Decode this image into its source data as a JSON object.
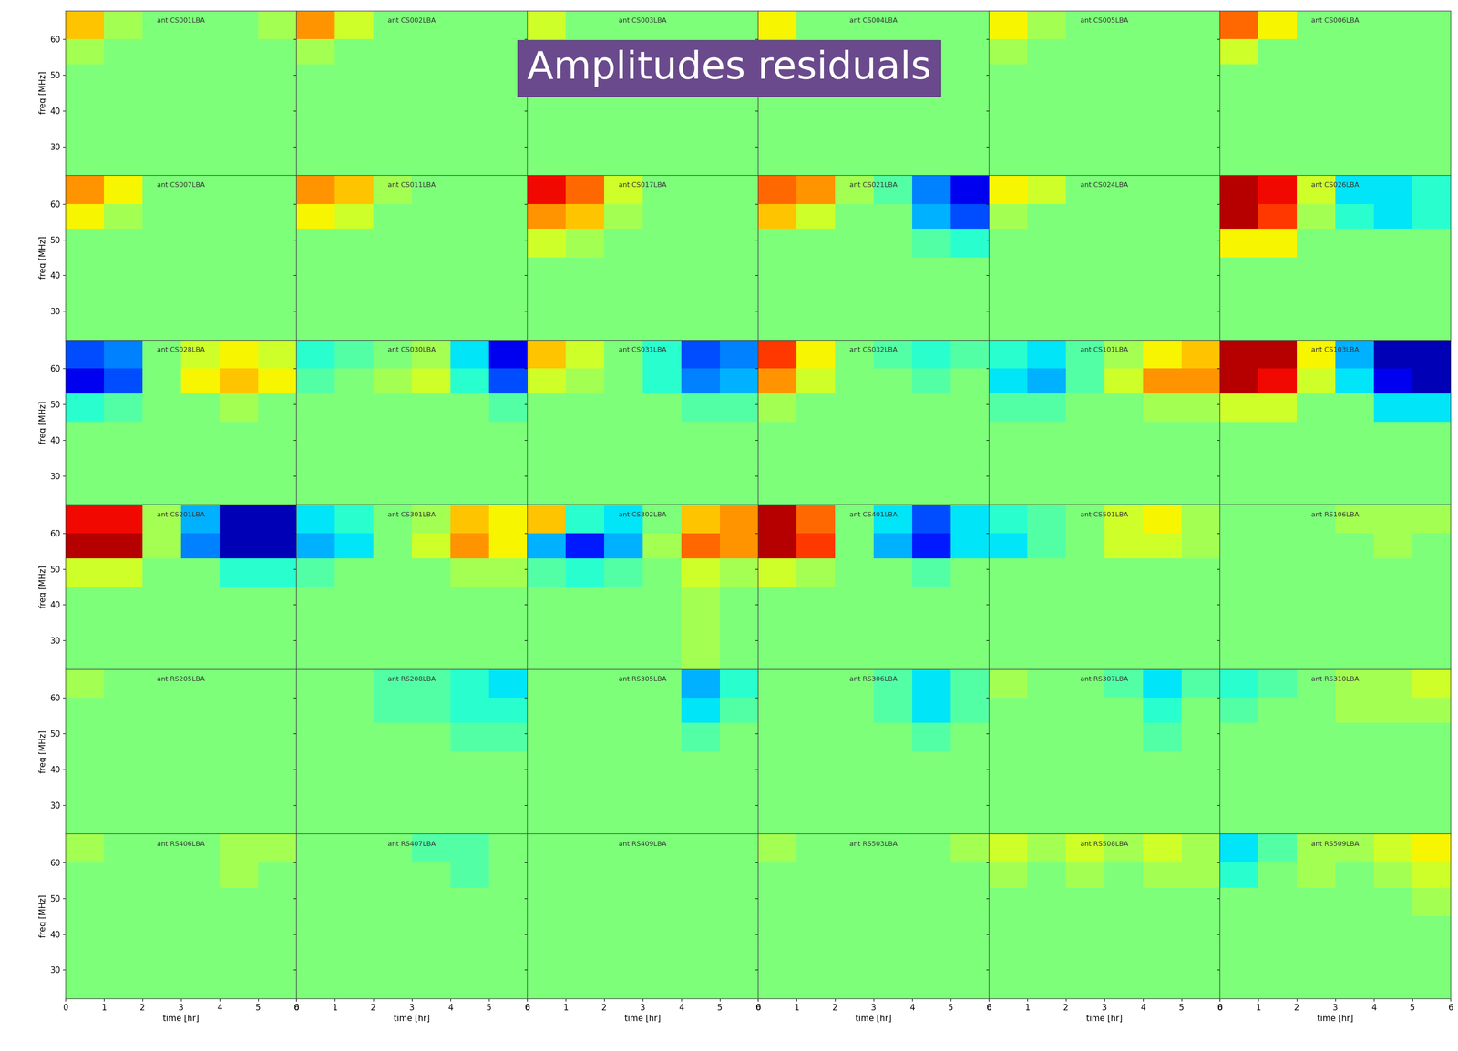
{
  "title": "Amplitudes residuals",
  "chart_data": [
    {
      "type": "heatmap",
      "title": "ant CS001LBA",
      "tick_labels": "y",
      "y_label": "freq [MHz]",
      "cells": [
        [
          0,
          0,
          0,
          0,
          0,
          0
        ],
        [
          0,
          0,
          0,
          0,
          0,
          0
        ],
        [
          0.1,
          0,
          0,
          0,
          0,
          0
        ],
        [
          0.4,
          0.1,
          0,
          0,
          0,
          0.1
        ]
      ]
    },
    {
      "type": "heatmap",
      "title": "ant CS002LBA",
      "tick_labels": false,
      "cells": [
        [
          0,
          0,
          0,
          0,
          0,
          0
        ],
        [
          0,
          0,
          0,
          0,
          0,
          0
        ],
        [
          0.1,
          0,
          0,
          0,
          0,
          0
        ],
        [
          0.5,
          0.2,
          0,
          0,
          0,
          0
        ]
      ]
    },
    {
      "type": "heatmap",
      "title": "ant CS003LBA",
      "tick_labels": false,
      "cells": [
        [
          0,
          0,
          0,
          0,
          0,
          0
        ],
        [
          0,
          0,
          0,
          0,
          0,
          0
        ],
        [
          0,
          0,
          0,
          0,
          0,
          0
        ],
        [
          0.2,
          0,
          0,
          0,
          0,
          0
        ]
      ]
    },
    {
      "type": "heatmap",
      "title": "ant CS004LBA",
      "tick_labels": false,
      "cells": [
        [
          0,
          0,
          0,
          0,
          0,
          0
        ],
        [
          0,
          0,
          0,
          0,
          0,
          0
        ],
        [
          0,
          0,
          0,
          0,
          0,
          0
        ],
        [
          0.3,
          0,
          0,
          0,
          0,
          0
        ]
      ]
    },
    {
      "type": "heatmap",
      "title": "ant CS005LBA",
      "tick_labels": false,
      "cells": [
        [
          0,
          0,
          0,
          0,
          0,
          0
        ],
        [
          0,
          0,
          0,
          0,
          0,
          0
        ],
        [
          0.1,
          0,
          0,
          0,
          0,
          0
        ],
        [
          0.3,
          0.1,
          0,
          0,
          0,
          0
        ]
      ]
    },
    {
      "type": "heatmap",
      "title": "ant CS006LBA",
      "tick_labels": false,
      "cells": [
        [
          0,
          0,
          0,
          0,
          0,
          0
        ],
        [
          0,
          0,
          0,
          0,
          0,
          0
        ],
        [
          0.2,
          0,
          0,
          0,
          0,
          0
        ],
        [
          0.6,
          0.3,
          0,
          0,
          0,
          0
        ]
      ]
    },
    {
      "type": "heatmap",
      "title": "ant CS007LBA",
      "tick_labels": "y",
      "y_label": "freq [MHz]",
      "cells": [
        [
          0,
          0,
          0,
          0,
          0,
          0
        ],
        [
          0,
          0,
          0,
          0,
          0,
          0
        ],
        [
          0.3,
          0.1,
          0,
          0,
          0,
          0
        ],
        [
          0.5,
          0.3,
          0,
          0,
          0,
          0
        ]
      ]
    },
    {
      "type": "heatmap",
      "title": "ant CS011LBA",
      "tick_labels": false,
      "cells": [
        [
          0,
          0,
          0,
          0,
          0,
          0
        ],
        [
          0,
          0,
          0,
          0,
          0,
          0
        ],
        [
          0.3,
          0.2,
          0,
          0,
          0,
          0
        ],
        [
          0.5,
          0.4,
          0.1,
          0,
          0,
          0
        ]
      ]
    },
    {
      "type": "heatmap",
      "title": "ant CS017LBA",
      "tick_labels": false,
      "cells": [
        [
          0,
          0,
          0,
          0,
          0,
          0
        ],
        [
          0.2,
          0.1,
          0,
          0,
          0,
          0
        ],
        [
          0.5,
          0.4,
          0.1,
          0,
          0,
          0
        ],
        [
          0.8,
          0.6,
          0.2,
          0,
          0,
          0
        ]
      ]
    },
    {
      "type": "heatmap",
      "title": "ant CS021LBA",
      "tick_labels": false,
      "cells": [
        [
          0,
          0,
          0,
          0,
          0,
          0
        ],
        [
          0,
          0,
          0,
          0,
          -0.1,
          -0.2
        ],
        [
          0.4,
          0.2,
          0,
          0,
          -0.4,
          -0.6
        ],
        [
          0.6,
          0.5,
          0.1,
          -0.1,
          -0.5,
          -0.8
        ]
      ]
    },
    {
      "type": "heatmap",
      "title": "ant CS024LBA",
      "tick_labels": false,
      "cells": [
        [
          0,
          0,
          0,
          0,
          0,
          0
        ],
        [
          0,
          0,
          0,
          0,
          0,
          0
        ],
        [
          0.1,
          0,
          0,
          0,
          0,
          0
        ],
        [
          0.3,
          0.2,
          0,
          0,
          0,
          0
        ]
      ]
    },
    {
      "type": "heatmap",
      "title": "ant CS026LBA",
      "tick_labels": false,
      "cells": [
        [
          0,
          0,
          0,
          0,
          0,
          0
        ],
        [
          0.3,
          0.3,
          0,
          0,
          0,
          0
        ],
        [
          0.9,
          0.7,
          0.1,
          -0.2,
          -0.3,
          -0.2
        ],
        [
          0.9,
          0.8,
          0.2,
          -0.3,
          -0.3,
          -0.2
        ]
      ]
    },
    {
      "type": "heatmap",
      "title": "ant CS028LBA",
      "tick_labels": "y",
      "y_label": "freq [MHz]",
      "cells": [
        [
          0,
          0,
          0,
          0,
          0,
          0
        ],
        [
          -0.2,
          -0.1,
          0,
          0,
          0.1,
          0
        ],
        [
          -0.8,
          -0.6,
          0,
          0.3,
          0.4,
          0.3
        ],
        [
          -0.6,
          -0.5,
          0,
          0.2,
          0.3,
          0.2
        ]
      ]
    },
    {
      "type": "heatmap",
      "title": "ant CS030LBA",
      "tick_labels": false,
      "cells": [
        [
          0,
          0,
          0,
          0,
          0,
          0
        ],
        [
          0,
          0,
          0,
          0,
          0,
          -0.1
        ],
        [
          -0.1,
          0,
          0.1,
          0.2,
          -0.2,
          -0.6
        ],
        [
          -0.2,
          -0.1,
          0,
          0.1,
          -0.3,
          -0.8
        ]
      ]
    },
    {
      "type": "heatmap",
      "title": "ant CS031LBA",
      "tick_labels": false,
      "cells": [
        [
          0,
          0,
          0,
          0,
          0,
          0
        ],
        [
          0,
          0,
          0,
          0,
          -0.1,
          -0.1
        ],
        [
          0.2,
          0.1,
          0,
          -0.2,
          -0.5,
          -0.4
        ],
        [
          0.4,
          0.2,
          0,
          -0.2,
          -0.6,
          -0.5
        ]
      ]
    },
    {
      "type": "heatmap",
      "title": "ant CS032LBA",
      "tick_labels": false,
      "cells": [
        [
          0,
          0,
          0,
          0,
          0,
          0
        ],
        [
          0.1,
          0,
          0,
          0,
          0,
          0
        ],
        [
          0.5,
          0.2,
          0,
          0,
          -0.1,
          0
        ],
        [
          0.7,
          0.3,
          0,
          -0.1,
          -0.2,
          -0.1
        ]
      ]
    },
    {
      "type": "heatmap",
      "title": "ant CS101LBA",
      "tick_labels": false,
      "cells": [
        [
          0,
          0,
          0,
          0,
          0,
          0
        ],
        [
          -0.1,
          -0.1,
          0,
          0,
          0.1,
          0.1
        ],
        [
          -0.3,
          -0.4,
          -0.1,
          0.2,
          0.5,
          0.5
        ],
        [
          -0.2,
          -0.3,
          -0.1,
          0.1,
          0.3,
          0.4
        ]
      ]
    },
    {
      "type": "heatmap",
      "title": "ant CS103LBA",
      "tick_labels": false,
      "cells": [
        [
          0,
          0,
          0,
          0,
          0,
          0
        ],
        [
          0.2,
          0.2,
          0,
          0,
          -0.3,
          -0.3
        ],
        [
          0.9,
          0.8,
          0.2,
          -0.3,
          -0.8,
          -0.9
        ],
        [
          0.9,
          0.9,
          0.3,
          -0.4,
          -0.9,
          -0.9
        ]
      ]
    },
    {
      "type": "heatmap",
      "title": "ant CS201LBA",
      "tick_labels": "y",
      "y_label": "freq [MHz]",
      "cells": [
        [
          0,
          0,
          0,
          0,
          0,
          0
        ],
        [
          0.2,
          0.2,
          0,
          0,
          -0.2,
          -0.2
        ],
        [
          0.9,
          0.9,
          0.1,
          -0.5,
          -0.9,
          -0.9
        ],
        [
          0.8,
          0.8,
          0.1,
          -0.4,
          -0.9,
          -0.9
        ]
      ]
    },
    {
      "type": "heatmap",
      "title": "ant CS301LBA",
      "tick_labels": false,
      "cells": [
        [
          0,
          0,
          0,
          0,
          0,
          0
        ],
        [
          -0.1,
          0,
          0,
          0,
          0.1,
          0.1
        ],
        [
          -0.4,
          -0.3,
          0,
          0.2,
          0.5,
          0.3
        ],
        [
          -0.3,
          -0.2,
          0,
          0.1,
          0.4,
          0.3
        ]
      ]
    },
    {
      "type": "heatmap",
      "title": "ant CS302LBA",
      "tick_labels": false,
      "cells": [
        [
          0,
          0,
          0,
          0,
          0.1,
          0
        ],
        [
          -0.1,
          -0.2,
          -0.1,
          0,
          0.2,
          0.1
        ],
        [
          -0.4,
          -0.7,
          -0.4,
          0.1,
          0.6,
          0.5
        ],
        [
          0.4,
          -0.2,
          -0.3,
          0,
          0.4,
          0.5
        ]
      ]
    },
    {
      "type": "heatmap",
      "title": "ant CS401LBA",
      "tick_labels": false,
      "cells": [
        [
          0,
          0,
          0,
          0,
          0,
          0
        ],
        [
          0.2,
          0.1,
          0,
          0,
          -0.1,
          0
        ],
        [
          0.9,
          0.7,
          0,
          -0.4,
          -0.7,
          -0.3
        ],
        [
          0.9,
          0.6,
          0,
          -0.3,
          -0.6,
          -0.3
        ]
      ]
    },
    {
      "type": "heatmap",
      "title": "ant CS501LBA",
      "tick_labels": false,
      "cells": [
        [
          0,
          0,
          0,
          0,
          0,
          0
        ],
        [
          0,
          0,
          0,
          0,
          0,
          0
        ],
        [
          -0.3,
          -0.1,
          0,
          0.2,
          0.2,
          0.1
        ],
        [
          -0.2,
          -0.1,
          0,
          0.2,
          0.3,
          0.1
        ]
      ]
    },
    {
      "type": "heatmap",
      "title": "ant RS106LBA",
      "tick_labels": false,
      "cells": [
        [
          0,
          0,
          0,
          0,
          0,
          0
        ],
        [
          0,
          0,
          0,
          0,
          0,
          0
        ],
        [
          0,
          0,
          0,
          0,
          0.1,
          0
        ],
        [
          0,
          0,
          0,
          0.1,
          0.1,
          0.1
        ]
      ]
    },
    {
      "type": "heatmap",
      "title": "ant RS205LBA",
      "tick_labels": "y",
      "y_label": "freq [MHz]",
      "cells": [
        [
          0,
          0,
          0,
          0,
          0,
          0
        ],
        [
          0,
          0,
          0,
          0,
          0,
          0
        ],
        [
          0,
          0,
          0,
          0,
          0,
          0
        ],
        [
          0.1,
          0,
          0,
          0,
          0,
          0
        ]
      ]
    },
    {
      "type": "heatmap",
      "title": "ant RS208LBA",
      "tick_labels": false,
      "cells": [
        [
          0,
          0,
          0,
          0,
          0,
          0
        ],
        [
          0,
          0,
          0,
          0,
          -0.1,
          -0.1
        ],
        [
          0,
          0,
          -0.1,
          -0.1,
          -0.2,
          -0.2
        ],
        [
          0,
          0,
          -0.1,
          -0.1,
          -0.2,
          -0.3
        ]
      ]
    },
    {
      "type": "heatmap",
      "title": "ant RS305LBA",
      "tick_labels": false,
      "cells": [
        [
          0,
          0,
          0,
          0,
          0,
          0
        ],
        [
          0,
          0,
          0,
          0,
          -0.1,
          0
        ],
        [
          0,
          0,
          0,
          0,
          -0.3,
          -0.1
        ],
        [
          0,
          0,
          0,
          0,
          -0.4,
          -0.2
        ]
      ]
    },
    {
      "type": "heatmap",
      "title": "ant RS306LBA",
      "tick_labels": false,
      "cells": [
        [
          0,
          0,
          0,
          0,
          0,
          0
        ],
        [
          0,
          0,
          0,
          0,
          -0.1,
          0
        ],
        [
          0,
          0,
          0,
          -0.1,
          -0.3,
          -0.1
        ],
        [
          0,
          0,
          0,
          -0.1,
          -0.3,
          -0.1
        ]
      ]
    },
    {
      "type": "heatmap",
      "title": "ant RS307LBA",
      "tick_labels": false,
      "cells": [
        [
          0,
          0,
          0,
          0,
          0,
          0
        ],
        [
          0,
          0,
          0,
          0,
          -0.1,
          0
        ],
        [
          0,
          0,
          0,
          0,
          -0.2,
          0
        ],
        [
          0.1,
          0,
          0,
          -0.1,
          -0.3,
          -0.1
        ]
      ]
    },
    {
      "type": "heatmap",
      "title": "ant RS310LBA",
      "tick_labels": false,
      "cells": [
        [
          0,
          0,
          0,
          0,
          0,
          0
        ],
        [
          0,
          0,
          0,
          0,
          0,
          0
        ],
        [
          -0.1,
          0,
          0,
          0.1,
          0.1,
          0.1
        ],
        [
          -0.2,
          -0.1,
          0,
          0.1,
          0.1,
          0.2
        ]
      ]
    },
    {
      "type": "heatmap",
      "title": "ant RS406LBA",
      "tick_labels": true,
      "x_label": "time [hr]",
      "y_label": "freq [MHz]",
      "cells": [
        [
          0,
          0,
          0,
          0,
          0,
          0
        ],
        [
          0,
          0,
          0,
          0,
          0,
          0
        ],
        [
          0,
          0,
          0,
          0,
          0.1,
          0
        ],
        [
          0.1,
          0,
          0,
          0,
          0.1,
          0.1
        ]
      ]
    },
    {
      "type": "heatmap",
      "title": "ant RS407LBA",
      "tick_labels": "x",
      "x_label": "time [hr]",
      "cells": [
        [
          0,
          0,
          0,
          0,
          0,
          0
        ],
        [
          0,
          0,
          0,
          0,
          0,
          0
        ],
        [
          0,
          0,
          0,
          0,
          -0.1,
          0
        ],
        [
          0,
          0,
          0,
          -0.1,
          -0.1,
          0
        ]
      ]
    },
    {
      "type": "heatmap",
      "title": "ant RS409LBA",
      "tick_labels": "x",
      "x_label": "time [hr]",
      "cells": [
        [
          0,
          0,
          0,
          0,
          0,
          0
        ],
        [
          0,
          0,
          0,
          0,
          0,
          0
        ],
        [
          0,
          0,
          0,
          0,
          0,
          0
        ],
        [
          0,
          0,
          0,
          0,
          0,
          0
        ]
      ]
    },
    {
      "type": "heatmap",
      "title": "ant RS503LBA",
      "tick_labels": "x",
      "x_label": "time [hr]",
      "cells": [
        [
          0,
          0,
          0,
          0,
          0,
          0
        ],
        [
          0,
          0,
          0,
          0,
          0,
          0
        ],
        [
          0,
          0,
          0,
          0,
          0,
          0
        ],
        [
          0.1,
          0,
          0,
          0,
          0,
          0.1
        ]
      ]
    },
    {
      "type": "heatmap",
      "title": "ant RS508LBA",
      "tick_labels": "x",
      "x_label": "time [hr]",
      "cells": [
        [
          0,
          0,
          0,
          0,
          0,
          0
        ],
        [
          0,
          0,
          0,
          0,
          0,
          0
        ],
        [
          0.1,
          0,
          0.1,
          0,
          0.1,
          0.1
        ],
        [
          0.2,
          0.1,
          0.2,
          0.1,
          0.2,
          0.1
        ]
      ]
    },
    {
      "type": "heatmap",
      "title": "ant RS509LBA",
      "tick_labels": "x",
      "x_label": "time [hr]",
      "cells": [
        [
          0,
          0,
          0,
          0,
          0,
          0
        ],
        [
          0,
          0,
          0,
          0,
          0,
          0.1
        ],
        [
          -0.2,
          0,
          0.1,
          0,
          0.1,
          0.2
        ],
        [
          -0.3,
          -0.1,
          0.1,
          0.1,
          0.2,
          0.3
        ]
      ]
    }
  ],
  "x_edges": [
    0,
    1,
    2,
    3,
    4,
    5,
    6
  ],
  "y_edges": [
    22,
    45,
    53,
    60,
    68
  ],
  "xlim": [
    0,
    6
  ],
  "ylim": [
    22,
    68
  ],
  "xticks": [
    0,
    1,
    2,
    3,
    4,
    5,
    6
  ],
  "yticks": [
    30,
    40,
    50,
    60
  ],
  "zlim": [
    -1,
    1
  ]
}
